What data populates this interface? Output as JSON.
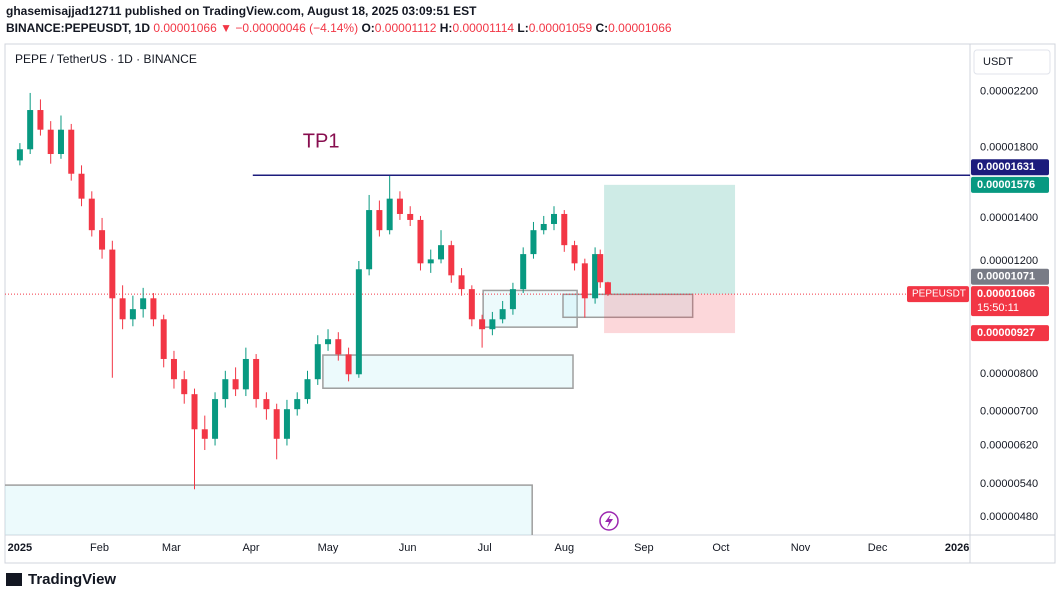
{
  "header": {
    "line1": "ghasemisajjad12711 published on TradingView.com, August 18, 2025 03:09:51 EST",
    "symbol": "BINANCE:PEPEUSDT, 1D",
    "last": "0.00001066",
    "change": "▼ −0.00000046 (−4.14%)",
    "ohlc": [
      {
        "label": "O:",
        "value": "0.00001112"
      },
      {
        "label": "H:",
        "value": "0.00001114"
      },
      {
        "label": "L:",
        "value": "0.00001059"
      },
      {
        "label": "C:",
        "value": "0.00001066"
      }
    ]
  },
  "chart_data": {
    "type": "candlestick",
    "title": "PEPE / TetherUS · 1D · BINANCE",
    "currency": "USDT",
    "log_scale": true,
    "grid": false,
    "up_color": "#089981",
    "down_color": "#f23645",
    "x": [
      0,
      4,
      8,
      12,
      16,
      20,
      24,
      28,
      32,
      36,
      40,
      44,
      48,
      52,
      56,
      60,
      64,
      68,
      72,
      76,
      80,
      84,
      88,
      92,
      96,
      100,
      104,
      108,
      112,
      116,
      120,
      124,
      128,
      132,
      136,
      140,
      144,
      148,
      152,
      156,
      160,
      164,
      168,
      172,
      176,
      180,
      184,
      188,
      192,
      196,
      200,
      204,
      208,
      212,
      216,
      220,
      224,
      226,
      229
    ],
    "open": [
      1.72e-05,
      1.79e-05,
      2.06e-05,
      1.92e-05,
      1.76e-05,
      1.92e-05,
      1.64e-05,
      1.5e-05,
      1.34e-05,
      1.25e-05,
      1.05e-05,
      9.74e-06,
      1.01e-05,
      1.05e-05,
      9.74e-06,
      8.45e-06,
      7.86e-06,
      7.45e-06,
      6.57e-06,
      6.35e-06,
      7.32e-06,
      7.86e-06,
      7.58e-06,
      8.45e-06,
      7.32e-06,
      7.06e-06,
      6.35e-06,
      7.06e-06,
      7.32e-06,
      7.86e-06,
      8.91e-06,
      9.07e-06,
      8.59e-06,
      8e-06,
      1.165e-05,
      1.44e-05,
      1.34e-05,
      1.5e-05,
      1.42e-05,
      1.39e-05,
      1.19e-05,
      1.207e-05,
      1.27e-05,
      1.14e-05,
      1.085e-05,
      9.74e-06,
      9.4e-06,
      9.74e-06,
      1.01e-05,
      1.085e-05,
      1.23e-05,
      1.34e-05,
      1.37e-05,
      1.42e-05,
      1.27e-05,
      1.19e-05,
      1.05e-05,
      1.23e-05,
      1.112e-05
    ],
    "high": [
      1.83e-05,
      2.19e-05,
      2.14e-05,
      1.98e-05,
      2.02e-05,
      1.96e-05,
      1.69e-05,
      1.54e-05,
      1.4e-05,
      1.29e-05,
      1.1e-05,
      1.06e-05,
      1.09e-05,
      1.07e-05,
      9.9e-06,
      8.7e-06,
      8.1e-06,
      7.6e-06,
      6.9e-06,
      7.5e-06,
      8.1e-06,
      8.2e-06,
      8.8e-06,
      8.6e-06,
      7.5e-06,
      7.2e-06,
      7.3e-06,
      7.5e-06,
      8.1e-06,
      9.2e-06,
      9.4e-06,
      9.3e-06,
      8.8e-06,
      1.2e-05,
      1.52e-05,
      1.49e-05,
      1.63e-05,
      1.54e-05,
      1.46e-05,
      1.41e-05,
      1.25e-05,
      1.34e-05,
      1.29e-05,
      1.17e-05,
      1.1e-05,
      9.9e-06,
      1e-05,
      1.04e-05,
      1.11e-05,
      1.26e-05,
      1.38e-05,
      1.41e-05,
      1.46e-05,
      1.44e-05,
      1.29e-05,
      1.21e-05,
      1.26e-05,
      1.25e-05,
      1.114e-05
    ],
    "low": [
      1.69e-05,
      1.76e-05,
      1.88e-05,
      1.7e-05,
      1.73e-05,
      1.6e-05,
      1.46e-05,
      1.31e-05,
      1.21e-05,
      7.9e-06,
      9.4e-06,
      9.5e-06,
      9.8e-06,
      9.5e-06,
      8.2e-06,
      7.6e-06,
      7.2e-06,
      5.3e-06,
      6.1e-06,
      6.2e-06,
      7.1e-06,
      7.4e-06,
      7.4e-06,
      7.1e-06,
      6.8e-06,
      5.9e-06,
      6.2e-06,
      6.9e-06,
      7.2e-06,
      7.7e-06,
      8.7e-06,
      8.4e-06,
      7.8e-06,
      7.9e-06,
      1.14e-05,
      1.31e-05,
      1.32e-05,
      1.39e-05,
      1.36e-05,
      1.16e-05,
      1.15e-05,
      1.19e-05,
      1.11e-05,
      1.06e-05,
      9.5e-06,
      8.8e-06,
      9.2e-06,
      9.6e-06,
      9.9e-06,
      1.07e-05,
      1.21e-05,
      1.32e-05,
      1.34e-05,
      1.24e-05,
      1.16e-05,
      9.8e-06,
      1.03e-05,
      1.09e-05,
      1.059e-05
    ],
    "close": [
      1.79e-05,
      2.06e-05,
      1.92e-05,
      1.76e-05,
      1.92e-05,
      1.64e-05,
      1.5e-05,
      1.34e-05,
      1.25e-05,
      1.05e-05,
      9.74e-06,
      1.01e-05,
      1.05e-05,
      9.74e-06,
      8.45e-06,
      7.86e-06,
      7.45e-06,
      6.57e-06,
      6.35e-06,
      7.32e-06,
      7.86e-06,
      7.58e-06,
      8.45e-06,
      7.32e-06,
      7.06e-06,
      6.35e-06,
      7.06e-06,
      7.32e-06,
      7.86e-06,
      8.91e-06,
      9.07e-06,
      8.59e-06,
      8e-06,
      1.165e-05,
      1.44e-05,
      1.34e-05,
      1.5e-05,
      1.42e-05,
      1.39e-05,
      1.19e-05,
      1.207e-05,
      1.27e-05,
      1.14e-05,
      1.085e-05,
      9.74e-06,
      9.4e-06,
      9.74e-06,
      1.01e-05,
      1.085e-05,
      1.23e-05,
      1.34e-05,
      1.37e-05,
      1.42e-05,
      1.27e-05,
      1.19e-05,
      1.05e-05,
      1.23e-05,
      1.112e-05,
      1.066e-05
    ],
    "xlim": [
      -5.8,
      370
    ],
    "xticks": [
      {
        "value": 0,
        "label": "2025"
      },
      {
        "value": 31,
        "label": "Feb"
      },
      {
        "value": 59,
        "label": "Mar"
      },
      {
        "value": 90,
        "label": "Apr"
      },
      {
        "value": 120,
        "label": "May"
      },
      {
        "value": 151,
        "label": "Jun"
      },
      {
        "value": 181,
        "label": "Jul"
      },
      {
        "value": 212,
        "label": "Aug"
      },
      {
        "value": 243,
        "label": "Sep"
      },
      {
        "value": 273,
        "label": "Oct"
      },
      {
        "value": 304,
        "label": "Nov"
      },
      {
        "value": 334,
        "label": "Dec"
      },
      {
        "value": 365,
        "label": "2026"
      }
    ],
    "ylim": [
      4.5e-06,
      2.6e-05
    ],
    "yticks": [
      {
        "value": 2.2e-05,
        "label": "0.00002200"
      },
      {
        "value": 1.8e-05,
        "label": "0.00001800"
      },
      {
        "value": 1.4e-05,
        "label": "0.00001400"
      },
      {
        "value": 1.2e-05,
        "label": "0.00001200"
      },
      {
        "value": 8e-06,
        "label": "0.00000800"
      },
      {
        "value": 7e-06,
        "label": "0.00000700"
      },
      {
        "value": 6.2e-06,
        "label": "0.00000620"
      },
      {
        "value": 5.4e-06,
        "label": "0.00000540"
      },
      {
        "value": 4.8e-06,
        "label": "0.00000480"
      }
    ],
    "tp_line": {
      "label": "TP1",
      "value": 1.631e-05,
      "x_start": 90.7,
      "color": "#1c1c7c"
    },
    "zones": [
      {
        "x": [
          -8,
          199.5
        ],
        "y": [
          4.4e-06,
          5.38e-06
        ]
      },
      {
        "x": [
          118,
          215.4
        ],
        "y": [
          7.61e-06,
          8.57e-06
        ]
      },
      {
        "x": [
          180.4,
          217
        ],
        "y": [
          9.47e-06,
          1.08e-05
        ]
      },
      {
        "x": [
          211.5,
          262
        ],
        "y": [
          9.81e-06,
          1.065e-05
        ]
      }
    ],
    "position": {
      "x": [
        227.5,
        278.5
      ],
      "entry": 1.066e-05,
      "target": 1.576e-05,
      "stop": 9.27e-06
    },
    "price_labels": [
      {
        "value": 1.631e-05,
        "label": "0.00001631",
        "color": "#1c1c7c"
      },
      {
        "value": 1.576e-05,
        "label": "0.00001576",
        "color": "#089981"
      },
      {
        "value": 1.071e-05,
        "label": "0.00001071",
        "color": "#787b86"
      },
      {
        "value": 9.27e-06,
        "label": "0.00000927",
        "color": "#f23645"
      }
    ],
    "last_price": {
      "name": "PEPEUSDT",
      "value": 1.066e-05,
      "label": "0.00001066",
      "countdown": "15:50:11",
      "color": "#f23645"
    }
  },
  "footer": {
    "brand": "TradingView"
  }
}
